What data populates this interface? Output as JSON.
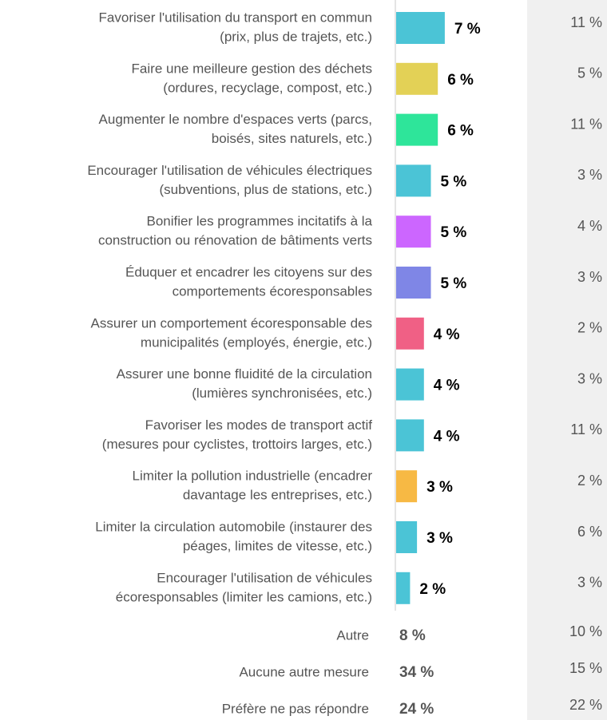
{
  "chart_data": {
    "type": "bar",
    "categories": [
      [
        "Favoriser l'utilisation du transport en commun",
        "(prix, plus de trajets, etc.)"
      ],
      [
        "Faire une meilleure gestion des déchets",
        "(ordures, recyclage, compost, etc.)"
      ],
      [
        "Augmenter le nombre d'espaces verts (parcs,",
        "boisés, sites naturels, etc.)"
      ],
      [
        "Encourager l'utilisation de véhicules électriques",
        "(subventions, plus de stations, etc.)"
      ],
      [
        "Bonifier les programmes incitatifs à la",
        "construction ou rénovation de bâtiments verts"
      ],
      [
        "Éduquer et encadrer les citoyens sur des",
        "comportements écoresponsables"
      ],
      [
        "Assurer un comportement écoresponsable des",
        "municipalités (employés, énergie, etc.)"
      ],
      [
        "Assurer une bonne fluidité de la circulation",
        "(lumières synchronisées, etc.)"
      ],
      [
        "Favoriser les modes de transport actif",
        "(mesures pour cyclistes, trottoirs larges, etc.)"
      ],
      [
        "Limiter la pollution industrielle (encadrer",
        "davantage les entreprises, etc.)"
      ],
      [
        "Limiter la circulation automobile (instaurer des",
        "péages, limites de vitesse, etc.)"
      ],
      [
        "Encourager l'utilisation de véhicules",
        "écoresponsables (limiter les camions, etc.)"
      ]
    ],
    "values": [
      7,
      6,
      6,
      5,
      5,
      5,
      4,
      4,
      4,
      3,
      3,
      2
    ],
    "value_labels": [
      "7 %",
      "6 %",
      "6 %",
      "5 %",
      "5 %",
      "5 %",
      "4 %",
      "4 %",
      "4 %",
      "3 %",
      "3 %",
      "2 %"
    ],
    "colors": [
      "#4bc4d6",
      "#e3d156",
      "#2ee59a",
      "#4bc4d6",
      "#cc66ff",
      "#7f86e6",
      "#f06085",
      "#4bc4d6",
      "#4bc4d6",
      "#f7b944",
      "#4bc4d6",
      "#4bc4d6"
    ],
    "comparison_values": [
      11,
      5,
      11,
      3,
      4,
      3,
      2,
      3,
      11,
      2,
      6,
      3
    ],
    "comparison_labels": [
      "11 %",
      "5 %",
      "11 %",
      "3 %",
      "4 %",
      "3 %",
      "2 %",
      "3 %",
      "11 %",
      "2 %",
      "6 %",
      "3 %"
    ],
    "other_categories": [
      "Autre",
      "Aucune autre mesure",
      "Préfère ne pas répondre"
    ],
    "other_values": [
      8,
      34,
      24
    ],
    "other_value_labels": [
      "8 %",
      "34 %",
      "24 %"
    ],
    "other_comparison_values": [
      10,
      15,
      22
    ],
    "other_comparison_labels": [
      "10 %",
      "15 %",
      "22 %"
    ]
  }
}
